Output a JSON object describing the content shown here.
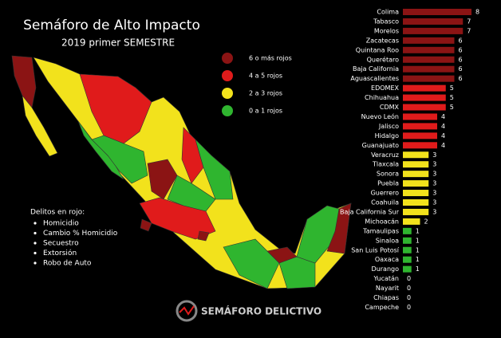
{
  "chart_data": {
    "type": "bar",
    "title": "Semáforo de Alto Impacto",
    "subtitle": "2019 primer SEMESTRE",
    "categories": [
      "Colima",
      "Tabasco",
      "Morelos",
      "Zacatecas",
      "Quintana Roo",
      "Querétaro",
      "Baja California",
      "Aguascalientes",
      "EDOMEX",
      "Chihuahua",
      "CDMX",
      "Nuevo León",
      "Jalisco",
      "Hidalgo",
      "Guanajuato",
      "Veracruz",
      "Tlaxcala",
      "Sonora",
      "Puebla",
      "Guerrero",
      "Coahuila",
      "Baja California Sur",
      "Michoacán",
      "Tamaulipas",
      "Sinaloa",
      "San Luis Potosí",
      "Oaxaca",
      "Durango",
      "Yucatán",
      "Nayarit",
      "Chiapas",
      "Campeche"
    ],
    "values": [
      8,
      7,
      7,
      6,
      6,
      6,
      6,
      6,
      5,
      5,
      5,
      4,
      4,
      4,
      4,
      3,
      3,
      3,
      3,
      3,
      3,
      3,
      2,
      1,
      1,
      1,
      1,
      1,
      0,
      0,
      0,
      0
    ],
    "colors": [
      "#8b1414",
      "#8b1414",
      "#8b1414",
      "#8b1414",
      "#8b1414",
      "#8b1414",
      "#8b1414",
      "#8b1414",
      "#e01b1b",
      "#e01b1b",
      "#e01b1b",
      "#e01b1b",
      "#e01b1b",
      "#e01b1b",
      "#e01b1b",
      "#f2e21c",
      "#f2e21c",
      "#f2e21c",
      "#f2e21c",
      "#f2e21c",
      "#f2e21c",
      "#f2e21c",
      "#f2e21c",
      "#2fb52f",
      "#2fb52f",
      "#2fb52f",
      "#2fb52f",
      "#2fb52f",
      "#2fb52f",
      "#2fb52f",
      "#2fb52f",
      "#2fb52f"
    ],
    "legend": [
      {
        "label": "6 o más rojos",
        "color": "#8b1414"
      },
      {
        "label": "4 a 5 rojos",
        "color": "#e01b1b"
      },
      {
        "label": "2 a 3 rojos",
        "color": "#f2e21c"
      },
      {
        "label": "0 a 1 rojos",
        "color": "#2fb52f"
      }
    ],
    "notes_title": "Delitos en rojo:",
    "notes": [
      "Homicidio",
      "Cambio % Homicidio",
      "Secuestro",
      "Extorsión",
      "Robo de Auto"
    ],
    "logo": "SEMÁFORO DELICTIVO"
  }
}
